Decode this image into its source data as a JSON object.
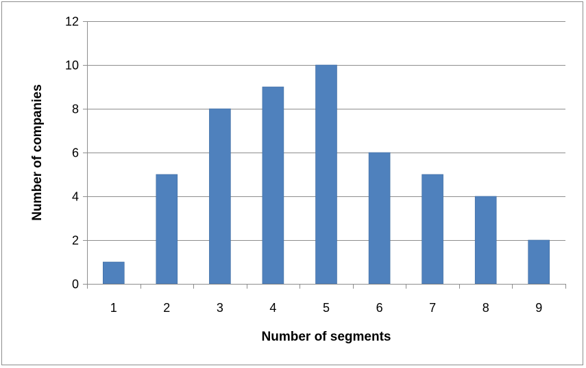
{
  "chart_data": {
    "type": "bar",
    "title": "",
    "xlabel": "Number of segments",
    "ylabel": "Number of companies",
    "categories": [
      "1",
      "2",
      "3",
      "4",
      "5",
      "6",
      "7",
      "8",
      "9"
    ],
    "values": [
      1,
      5,
      8,
      9,
      10,
      6,
      5,
      4,
      2
    ],
    "ylim": [
      0,
      12
    ],
    "yticks": [
      "0",
      "2",
      "4",
      "6",
      "8",
      "10",
      "12"
    ],
    "grid": true,
    "legend": "none",
    "colors": {
      "bar": "#4f81bd",
      "bar_edge": "#3f6c9f",
      "grid": "#8c8c8c",
      "axis": "#8c8c8c"
    }
  }
}
